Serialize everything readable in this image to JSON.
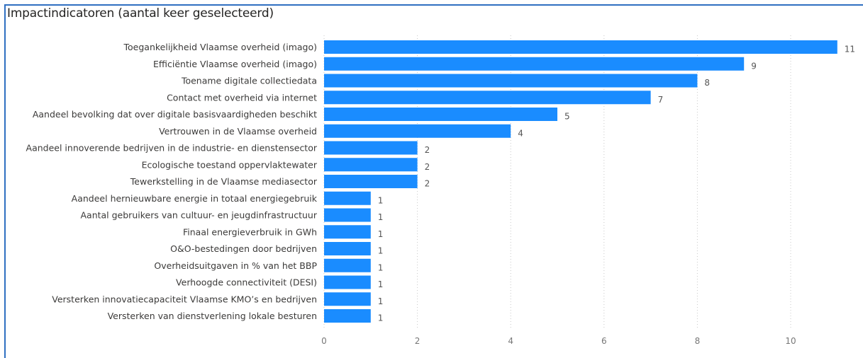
{
  "visual": {
    "title": "Impactindicatoren (aantal keer geselecteerd)",
    "accent": "#2f6fc1"
  },
  "chart_data": {
    "type": "bar",
    "orientation": "horizontal",
    "title": "Impactindicatoren (aantal keer geselecteerd)",
    "xlabel": "",
    "ylabel": "",
    "bar_color": "#1a8cff",
    "xlim": [
      0,
      11.5
    ],
    "xticks": [
      0,
      2,
      4,
      6,
      8,
      10
    ],
    "grid": true,
    "legend": "none",
    "categories": [
      "Toegankelijkheid Vlaamse overheid (imago)",
      "Efficiëntie Vlaamse overheid (imago)",
      "Toename digitale collectiedata",
      "Contact met overheid via internet",
      "Aandeel bevolking dat over digitale basisvaardigheden beschikt",
      "Vertrouwen in de Vlaamse overheid",
      "Aandeel innoverende bedrijven in de industrie- en dienstensector",
      "Ecologische toestand oppervlaktewater",
      "Tewerkstelling in de Vlaamse mediasector",
      "Aandeel hernieuwbare energie in totaal energiegebruik",
      "Aantal gebruikers van cultuur- en jeugdinfrastructuur",
      "Finaal energieverbruik in GWh",
      "O&O-bestedingen door bedrijven",
      "Overheidsuitgaven in % van het BBP",
      "Verhoogde connectiviteit (DESI)",
      "Versterken innovatiecapaciteit Vlaamse KMO’s en bedrijven",
      "Versterken van dienstverlening lokale besturen"
    ],
    "values": [
      11,
      9,
      8,
      7,
      5,
      4,
      2,
      2,
      2,
      1,
      1,
      1,
      1,
      1,
      1,
      1,
      1
    ]
  }
}
